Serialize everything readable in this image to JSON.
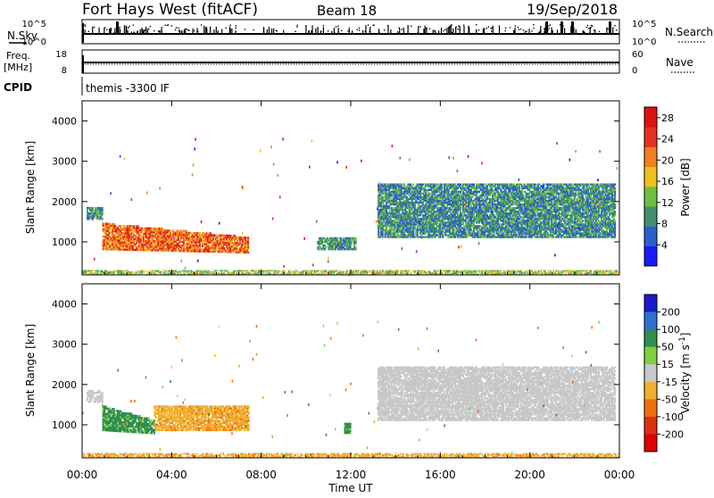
{
  "header": {
    "station": "Fort Hays West (fitACF)",
    "beam": "Beam 18",
    "date": "19/Sep/2018"
  },
  "top_panels": {
    "nsky_label": "N.Sky",
    "nsearch_label": "N.Search",
    "nsky_ticks": [
      "10^5",
      "10^0"
    ],
    "nsearch_ticks": [
      "10^5",
      "10^0"
    ],
    "freq_label_line1": "Freq.",
    "freq_label_line2": "[MHz]",
    "freq_ticks": [
      "18",
      "8"
    ],
    "nave_label": "Nave",
    "nave_ticks": [
      "60",
      "0"
    ],
    "cpid_label": "CPID",
    "cpid_value": "themis -3300 IF"
  },
  "chart_data": [
    {
      "type": "heatmap",
      "panel": "power",
      "xlabel": "",
      "ylabel": "Slant Range [km]",
      "x_tick_labels": [
        "00:00",
        "04:00",
        "08:00",
        "12:00",
        "16:00",
        "20:00",
        "00:00"
      ],
      "x_range_hours": [
        0,
        24
      ],
      "y_range_km": [
        180,
        4500
      ],
      "y_ticks": [
        1000,
        2000,
        3000,
        4000
      ],
      "colorbar": {
        "label": "Power [dB]",
        "ticks": [
          4,
          8,
          12,
          16,
          20,
          24,
          28
        ],
        "range": [
          0,
          30
        ],
        "colors": [
          "#1a1aff",
          "#2b5fd0",
          "#3f8f6f",
          "#6fbf3f",
          "#f0c020",
          "#f08020",
          "#e83020",
          "#e01010"
        ]
      },
      "echo_regions": [
        {
          "t_start": 0.2,
          "t_end": 0.9,
          "r_min": 1550,
          "r_max": 1850,
          "level": 10
        },
        {
          "t_start": 0.9,
          "t_end": 7.4,
          "r_min": 800,
          "r_max": 1450,
          "level": 22
        },
        {
          "t_start": 10.5,
          "t_end": 12.2,
          "r_min": 800,
          "r_max": 1100,
          "level": 10
        },
        {
          "t_start": 13.2,
          "t_end": 23.8,
          "r_min": 1100,
          "r_max": 2450,
          "level": 9
        },
        {
          "t_start": 0.0,
          "t_end": 24.0,
          "r_min": 180,
          "r_max": 300,
          "level": 14
        }
      ]
    },
    {
      "type": "heatmap",
      "panel": "velocity",
      "xlabel": "Time UT",
      "ylabel": "Slant Range [km]",
      "x_tick_labels": [
        "00:00",
        "04:00",
        "08:00",
        "12:00",
        "16:00",
        "20:00",
        "00:00"
      ],
      "x_range_hours": [
        0,
        24
      ],
      "y_range_km": [
        180,
        4500
      ],
      "y_ticks": [
        1000,
        2000,
        3000,
        4000
      ],
      "colorbar": {
        "label": "Velocity [m s^-1]",
        "ticks": [
          "200",
          "100",
          "50",
          "15",
          "-15",
          "-50",
          "-100",
          "-200"
        ],
        "colors": [
          "#1a1acc",
          "#2f6fd0",
          "#2f8f4f",
          "#80d040",
          "#c8c8c8",
          "#f0b030",
          "#f07010",
          "#e03010",
          "#e00000"
        ]
      },
      "echo_regions": [
        {
          "t_start": 0.2,
          "t_end": 0.9,
          "r_min": 1550,
          "r_max": 1850,
          "level": 0
        },
        {
          "t_start": 0.9,
          "t_end": 3.2,
          "r_min": 850,
          "r_max": 1450,
          "level": 60
        },
        {
          "t_start": 3.2,
          "t_end": 7.4,
          "r_min": 850,
          "r_max": 1450,
          "level": -40
        },
        {
          "t_start": 11.7,
          "t_end": 12.0,
          "r_min": 780,
          "r_max": 1050,
          "level": 60
        },
        {
          "t_start": 13.2,
          "t_end": 23.8,
          "r_min": 1100,
          "r_max": 2450,
          "level": 0
        },
        {
          "t_start": 0.0,
          "t_end": 24.0,
          "r_min": 180,
          "r_max": 300,
          "level": -40
        }
      ]
    }
  ]
}
